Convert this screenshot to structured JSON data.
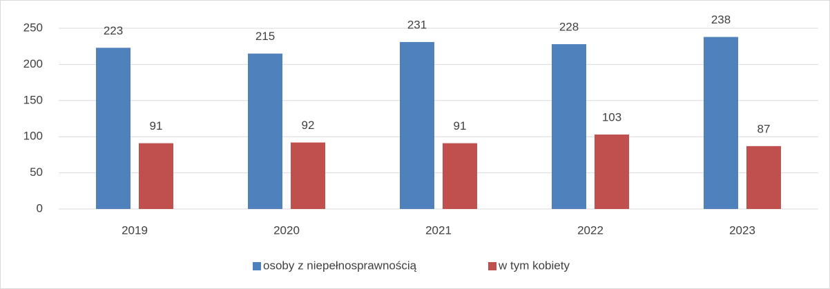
{
  "chart_data": {
    "type": "bar",
    "categories": [
      "2019",
      "2020",
      "2021",
      "2022",
      "2023"
    ],
    "series": [
      {
        "name": "osoby z niepełnosprawnością",
        "color": "#4f81bd",
        "values": [
          223,
          215,
          231,
          228,
          238
        ]
      },
      {
        "name": "w tym kobiety",
        "color": "#c0504d",
        "values": [
          91,
          92,
          91,
          103,
          87
        ]
      }
    ],
    "ylim": [
      0,
      250
    ],
    "yticks": [
      0,
      50,
      100,
      150,
      200,
      250
    ],
    "grid": true,
    "legend": "bottom"
  }
}
